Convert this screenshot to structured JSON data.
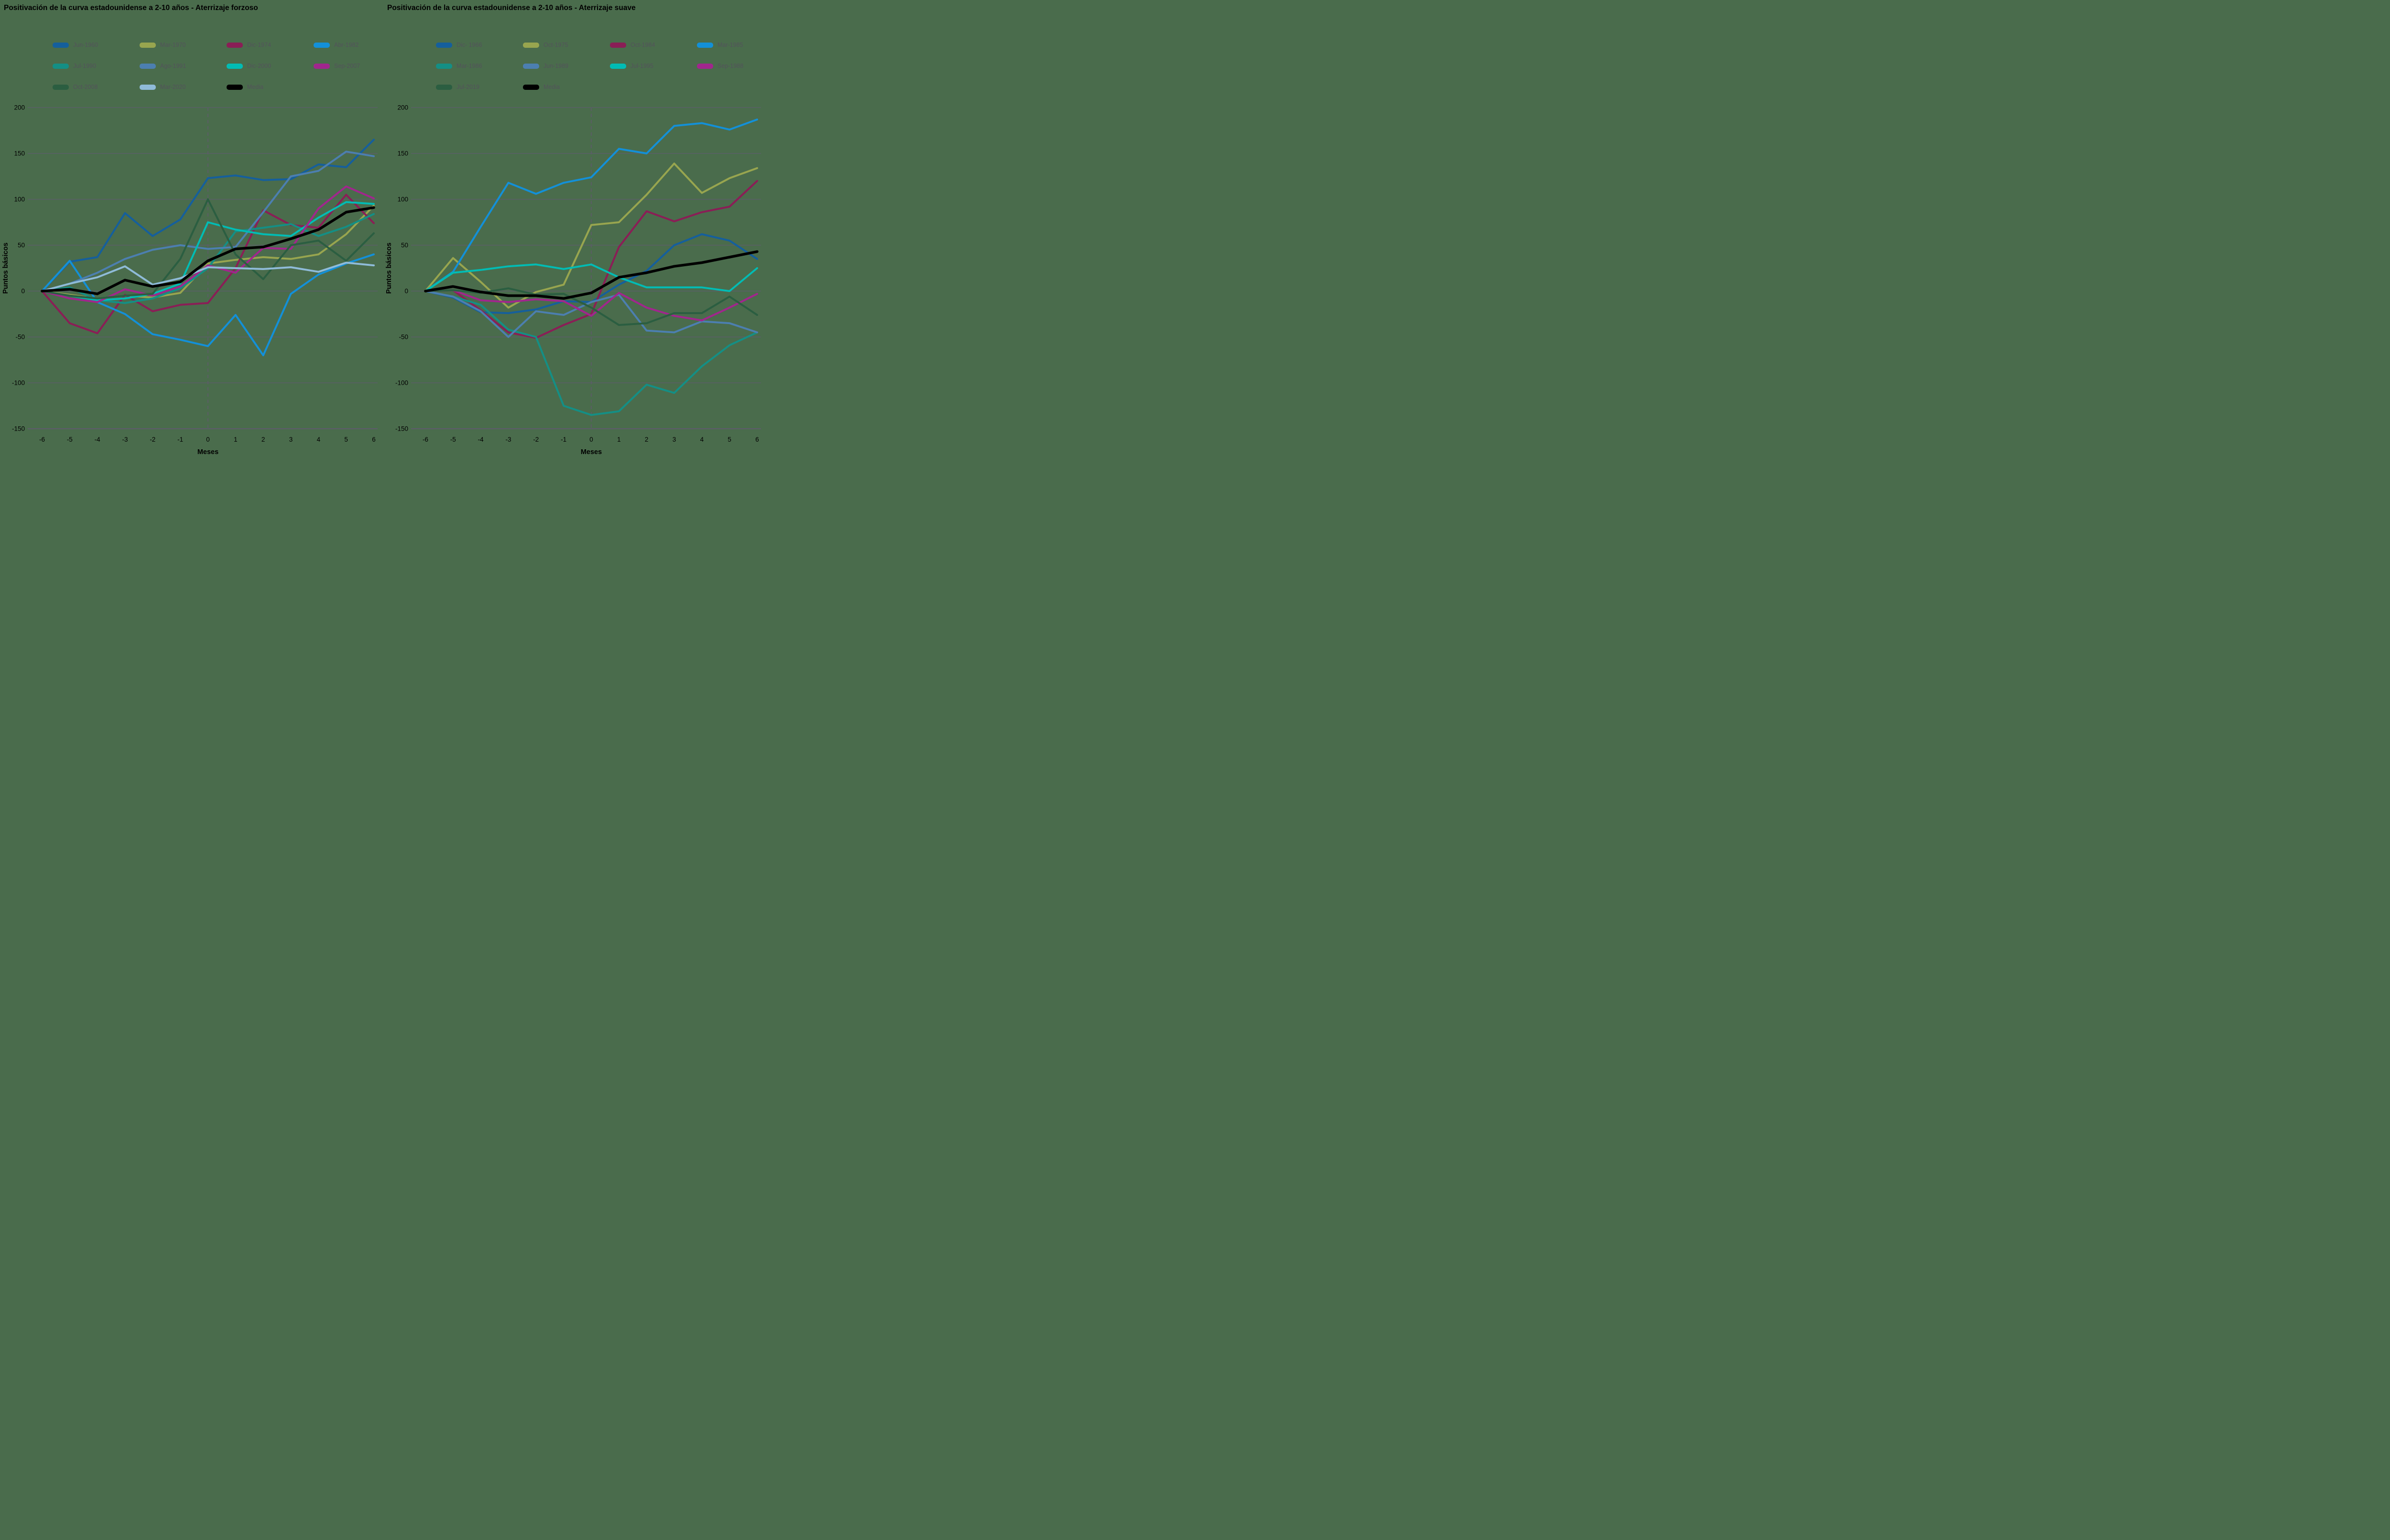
{
  "colors": {
    "background": "#4A6C4C",
    "grid": "#5E5B6B",
    "axis_text": "#000000",
    "legend_text": "#53525B"
  },
  "chart_data": {
    "type": "line",
    "x_months": [
      -6,
      -5,
      -4,
      -3,
      -2,
      -1,
      0,
      1,
      2,
      3,
      4,
      5,
      6
    ],
    "charts": [
      {
        "title": "Positivación de la curva estadounidense a 2-10 años - Aterrizaje forzoso",
        "xlabel": "Meses",
        "ylabel": "Puntos básicos",
        "ylim": [
          -150,
          200
        ],
        "yticks": [
          200,
          150,
          100,
          50,
          0,
          -50,
          -100,
          -150
        ],
        "zero_line_dashed": true,
        "legend_position": "top",
        "grid": true,
        "series": [
          {
            "name": "Jun-1960",
            "color": "#155F9C",
            "values": [
              0,
              32,
              37,
              85,
              60,
              78,
              123,
              126,
              121,
              122,
              138,
              135,
              165
            ]
          },
          {
            "name": "Mar-1970",
            "color": "#98A54F",
            "values": [
              0,
              -4,
              -8,
              -5,
              -7,
              -2,
              30,
              34,
              37,
              35,
              40,
              62,
              93
            ]
          },
          {
            "name": "Dic-1974",
            "color": "#8A1E56",
            "values": [
              0,
              -35,
              -46,
              -4,
              -22,
              -15,
              -13,
              25,
              88,
              72,
              69,
              105,
              74
            ]
          },
          {
            "name": "Abr-1982",
            "color": "#1390D8",
            "values": [
              0,
              33,
              -12,
              -25,
              -47,
              -53,
              -60,
              -26,
              -70,
              -3,
              18,
              30,
              40
            ]
          },
          {
            "name": "Jul-1990",
            "color": "#148F85",
            "values": [
              0,
              4,
              -10,
              -13,
              -8,
              3,
              25,
              65,
              69,
              73,
              60,
              70,
              84
            ]
          },
          {
            "name": "Ago-1991",
            "color": "#4C7FB0",
            "values": [
              0,
              8,
              20,
              35,
              45,
              50,
              46,
              48,
              86,
              125,
              131,
              152,
              147
            ]
          },
          {
            "name": "Dic-2000",
            "color": "#00BCB4",
            "values": [
              0,
              -5,
              -10,
              -8,
              -3,
              8,
              75,
              67,
              62,
              60,
              80,
              97,
              95
            ]
          },
          {
            "name": "Sep-2007",
            "color": "#A1268D",
            "values": [
              0,
              -8,
              -12,
              2,
              -5,
              5,
              28,
              20,
              47,
              46,
              90,
              114,
              101
            ]
          },
          {
            "name": "Oct-2008",
            "color": "#2B5E41",
            "values": [
              0,
              -5,
              -8,
              -5,
              -3,
              35,
              100,
              40,
              13,
              50,
              55,
              33,
              63
            ]
          },
          {
            "name": "Mar-2020",
            "color": "#8FBBD8",
            "values": [
              0,
              8,
              15,
              27,
              7,
              14,
              26,
              25,
              24,
              26,
              21,
              31,
              28
            ]
          },
          {
            "name": "Media",
            "color": "#000000",
            "values": [
              0,
              2,
              -3,
              12,
              5,
              10,
              33,
              46,
              48,
              57,
              67,
              86,
              91
            ]
          }
        ]
      },
      {
        "title": "Positivación de la curva estadounidense a 2-10 años - Aterrizaje suave",
        "xlabel": "Meses",
        "ylabel": "Puntos básicos",
        "ylim": [
          -150,
          200
        ],
        "yticks": [
          200,
          150,
          100,
          50,
          0,
          -50,
          -100,
          -150
        ],
        "zero_line_dashed": true,
        "legend_position": "top",
        "grid": true,
        "series": [
          {
            "name": "Dic- 1966",
            "color": "#155F9C",
            "values": [
              0,
              -7,
              -23,
              -24,
              -20,
              -11,
              -12,
              7,
              22,
              50,
              62,
              55,
              35
            ]
          },
          {
            "name": "Oct-1975",
            "color": "#98A54F",
            "values": [
              0,
              36,
              10,
              -18,
              -1,
              7,
              72,
              75,
              105,
              139,
              107,
              123,
              134
            ]
          },
          {
            "name": "Oct-1984",
            "color": "#8A1E56",
            "values": [
              0,
              1,
              -21,
              -45,
              -51,
              -37,
              -25,
              48,
              87,
              76,
              86,
              92,
              120
            ]
          },
          {
            "name": "Mar-1985",
            "color": "#1390D8",
            "values": [
              0,
              21,
              70,
              118,
              106,
              118,
              124,
              155,
              150,
              180,
              183,
              176,
              187
            ]
          },
          {
            "name": "Mar-1986",
            "color": "#148F85",
            "values": [
              0,
              -6,
              -15,
              -42,
              -50,
              -125,
              -135,
              -131,
              -102,
              -111,
              -82,
              -59,
              -45
            ]
          },
          {
            "name": "Jun-1989",
            "color": "#4C7FB0",
            "values": [
              0,
              -6,
              -22,
              -50,
              -22,
              -26,
              -12,
              -4,
              -43,
              -45,
              -33,
              -35,
              -45
            ]
          },
          {
            "name": "Jul-1995",
            "color": "#00BCB4",
            "values": [
              0,
              20,
              23,
              27,
              29,
              24,
              29,
              15,
              4,
              4,
              4,
              0,
              25
            ]
          },
          {
            "name": "Sep-1988",
            "color": "#A1268D",
            "values": [
              0,
              1,
              -10,
              -12,
              -9,
              -11,
              -27,
              -2,
              -18,
              -27,
              -32,
              -18,
              -3
            ]
          },
          {
            "name": "Jul-2019",
            "color": "#2B5E41",
            "values": [
              0,
              1,
              -2,
              3,
              -4,
              -3,
              -18,
              -37,
              -35,
              -24,
              -24,
              -6,
              -26
            ]
          },
          {
            "name": "Media",
            "color": "#000000",
            "values": [
              0,
              5,
              -1,
              -5,
              -5,
              -8,
              -2,
              15,
              20,
              27,
              31,
              37,
              43
            ]
          }
        ]
      }
    ]
  }
}
